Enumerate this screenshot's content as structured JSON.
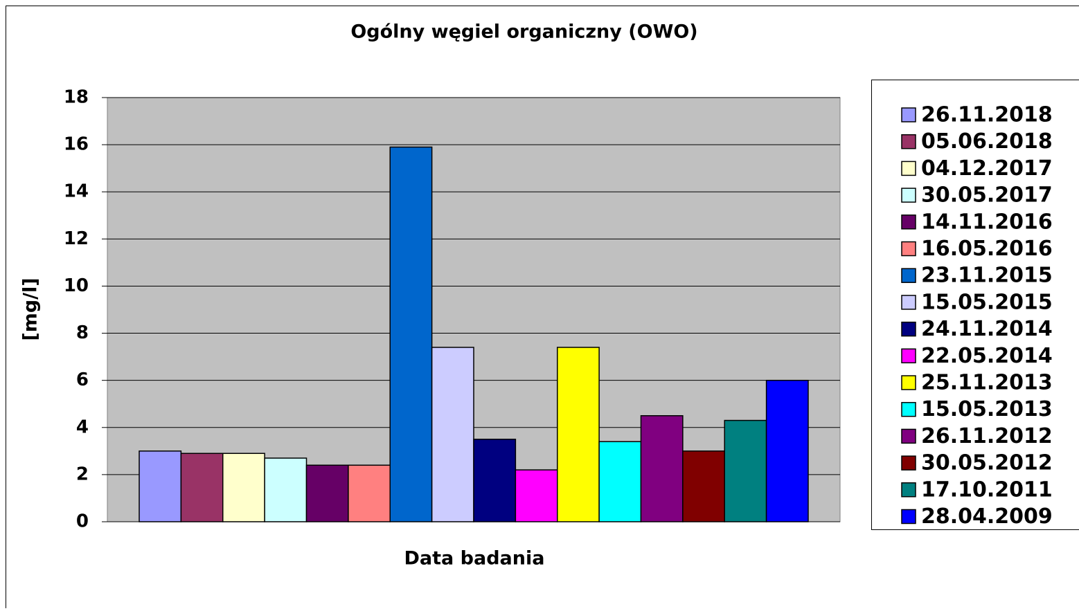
{
  "chart_data": {
    "type": "bar",
    "title": "Ogólny węgiel organiczny (OWO)",
    "x_label": "Data badania",
    "y_label": "[mg/l]",
    "categories": [
      null
    ],
    "series": [
      {
        "name": "26.11.2018",
        "color": "#9999ff",
        "values": [
          3.0
        ]
      },
      {
        "name": "05.06.2018",
        "color": "#993366",
        "values": [
          2.9
        ]
      },
      {
        "name": "04.12.2017",
        "color": "#ffffcc",
        "values": [
          2.9
        ]
      },
      {
        "name": "30.05.2017",
        "color": "#ccffff",
        "values": [
          2.7
        ]
      },
      {
        "name": "14.11.2016",
        "color": "#660066",
        "values": [
          2.4
        ]
      },
      {
        "name": "16.05.2016",
        "color": "#ff8080",
        "values": [
          2.4
        ]
      },
      {
        "name": "23.11.2015",
        "color": "#0066cc",
        "values": [
          15.9
        ]
      },
      {
        "name": "15.05.2015",
        "color": "#ccccff",
        "values": [
          7.4
        ]
      },
      {
        "name": "24.11.2014",
        "color": "#000080",
        "values": [
          3.5
        ]
      },
      {
        "name": "22.05.2014",
        "color": "#ff00ff",
        "values": [
          2.2
        ]
      },
      {
        "name": "25.11.2013",
        "color": "#ffff00",
        "values": [
          7.4
        ]
      },
      {
        "name": "15.05.2013",
        "color": "#00ffff",
        "values": [
          3.4
        ]
      },
      {
        "name": "26.11.2012",
        "color": "#800080",
        "values": [
          4.5
        ]
      },
      {
        "name": "30.05.2012",
        "color": "#800000",
        "values": [
          3.0
        ]
      },
      {
        "name": "17.10.2011",
        "color": "#008080",
        "values": [
          4.3
        ]
      },
      {
        "name": "28.04.2009",
        "color": "#0000ff",
        "values": [
          6.0
        ]
      }
    ],
    "ylim": [
      0,
      18
    ],
    "yticks": [
      0,
      2,
      4,
      6,
      8,
      10,
      12,
      14,
      16,
      18
    ],
    "grid": true,
    "legend": "right"
  }
}
